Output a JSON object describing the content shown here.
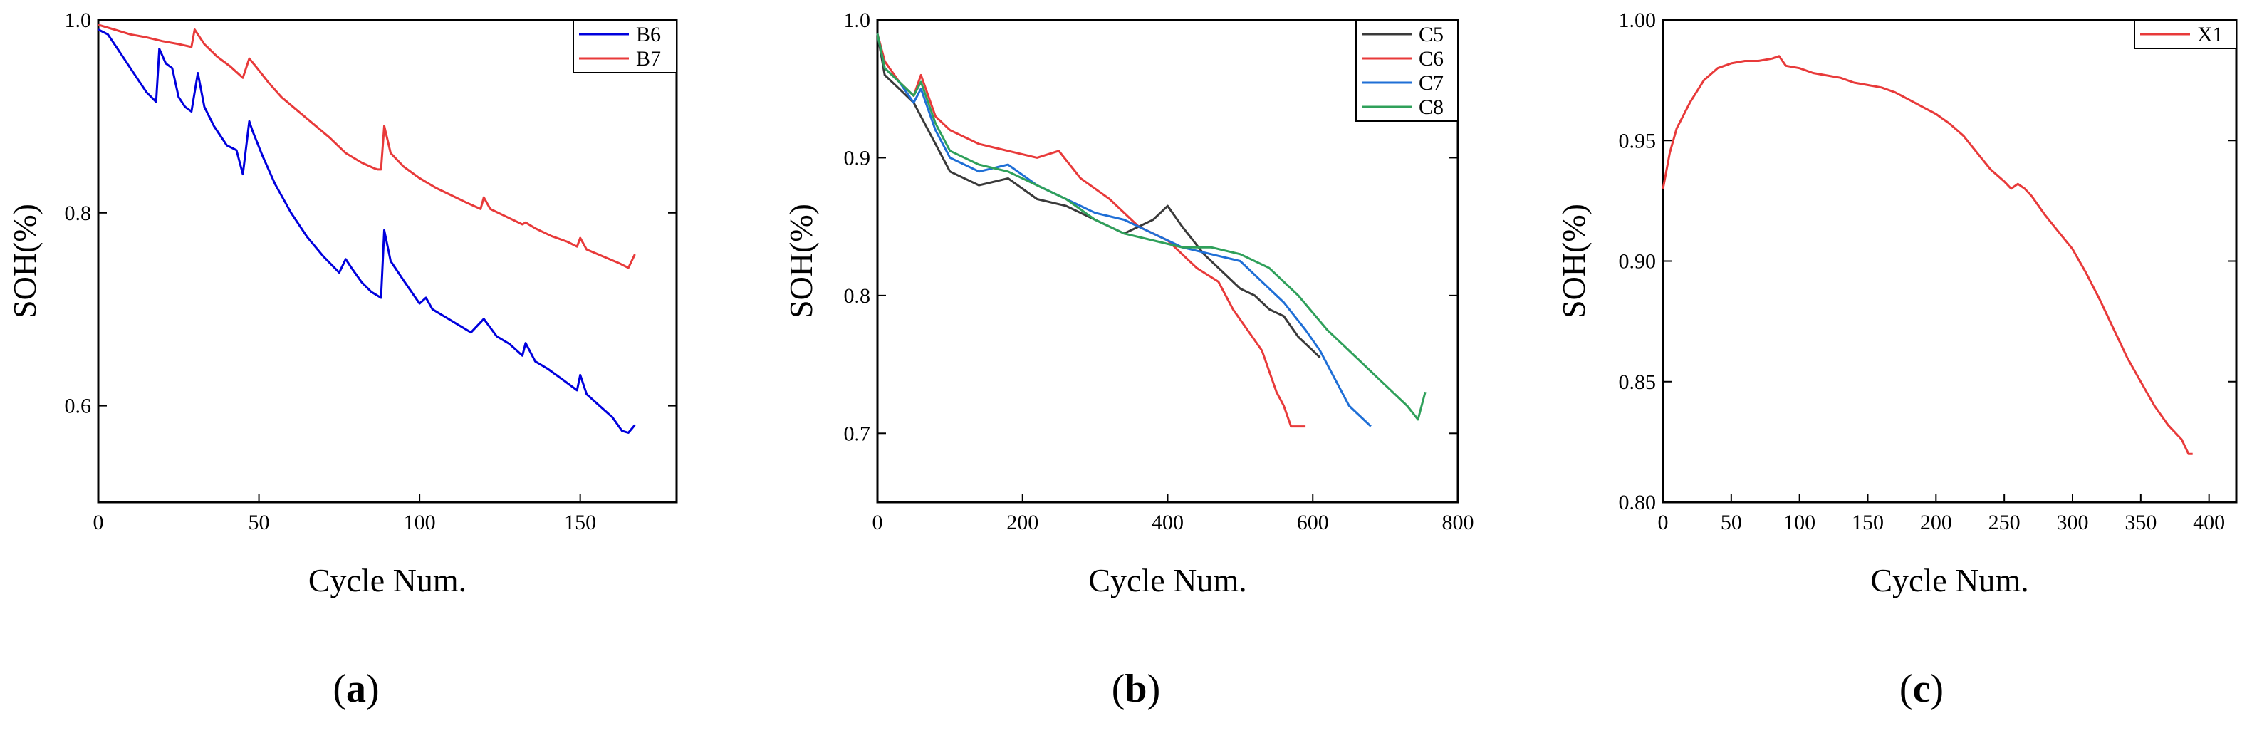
{
  "chart_data": [
    {
      "type": "line",
      "panel_label": "(a)",
      "panel_letter": "a",
      "xlabel": "Cycle Num.",
      "ylabel": "SOH(%)",
      "xlim": [
        0,
        180
      ],
      "ylim": [
        0.5,
        1.0
      ],
      "xticks": [
        0,
        50,
        100,
        150
      ],
      "yticks": [
        0.6,
        0.8,
        1.0
      ],
      "ytick_labels": [
        "0.6",
        "0.8",
        "1.0"
      ],
      "legend_position": "top-right",
      "series": [
        {
          "name": "B6",
          "color": "#0000dd",
          "x": [
            0,
            3,
            6,
            9,
            12,
            15,
            18,
            19,
            21,
            23,
            25,
            27,
            29,
            31,
            33,
            36,
            40,
            43,
            45,
            47,
            48,
            51,
            55,
            60,
            65,
            70,
            75,
            77,
            79,
            82,
            85,
            88,
            89,
            91,
            95,
            100,
            102,
            104,
            108,
            112,
            116,
            120,
            124,
            128,
            132,
            133,
            136,
            140,
            145,
            149,
            150,
            152,
            156,
            160,
            163,
            165,
            167
          ],
          "y": [
            0.99,
            0.985,
            0.97,
            0.955,
            0.94,
            0.925,
            0.915,
            0.97,
            0.955,
            0.95,
            0.92,
            0.91,
            0.905,
            0.945,
            0.91,
            0.89,
            0.87,
            0.865,
            0.84,
            0.895,
            0.885,
            0.86,
            0.83,
            0.8,
            0.775,
            0.755,
            0.738,
            0.752,
            0.742,
            0.728,
            0.718,
            0.712,
            0.782,
            0.75,
            0.73,
            0.706,
            0.712,
            0.7,
            0.692,
            0.684,
            0.676,
            0.69,
            0.672,
            0.664,
            0.652,
            0.665,
            0.646,
            0.638,
            0.626,
            0.616,
            0.632,
            0.612,
            0.6,
            0.588,
            0.574,
            0.572,
            0.58
          ]
        },
        {
          "name": "B7",
          "color": "#e83a3a",
          "x": [
            0,
            5,
            10,
            15,
            20,
            25,
            29,
            30,
            33,
            37,
            41,
            45,
            47,
            49,
            53,
            57,
            62,
            67,
            72,
            77,
            82,
            86,
            87,
            88,
            89,
            91,
            95,
            100,
            105,
            110,
            115,
            119,
            120,
            122,
            127,
            132,
            133,
            136,
            141,
            146,
            149,
            150,
            152,
            157,
            162,
            165,
            167
          ],
          "y": [
            0.995,
            0.99,
            0.985,
            0.982,
            0.978,
            0.975,
            0.972,
            0.99,
            0.975,
            0.962,
            0.952,
            0.94,
            0.96,
            0.952,
            0.935,
            0.92,
            0.906,
            0.892,
            0.878,
            0.862,
            0.852,
            0.846,
            0.845,
            0.845,
            0.89,
            0.862,
            0.848,
            0.836,
            0.826,
            0.818,
            0.81,
            0.804,
            0.816,
            0.804,
            0.796,
            0.788,
            0.79,
            0.784,
            0.776,
            0.77,
            0.765,
            0.774,
            0.762,
            0.755,
            0.748,
            0.743,
            0.757
          ]
        }
      ]
    },
    {
      "type": "line",
      "panel_label": "(b)",
      "panel_letter": "b",
      "xlabel": "Cycle Num.",
      "ylabel": "SOH(%)",
      "xlim": [
        0,
        800
      ],
      "ylim": [
        0.65,
        1.0
      ],
      "xticks": [
        0,
        200,
        400,
        600,
        800
      ],
      "yticks": [
        0.7,
        0.8,
        0.9,
        1.0
      ],
      "ytick_labels": [
        "0.7",
        "0.8",
        "0.9",
        "1.0"
      ],
      "legend_position": "top-right",
      "series": [
        {
          "name": "C5",
          "color": "#3a3a3a",
          "x": [
            0,
            10,
            30,
            50,
            60,
            80,
            100,
            140,
            180,
            220,
            260,
            300,
            340,
            380,
            400,
            420,
            450,
            480,
            500,
            520,
            540,
            560,
            580,
            600,
            610
          ],
          "y": [
            0.99,
            0.96,
            0.95,
            0.94,
            0.93,
            0.91,
            0.89,
            0.88,
            0.885,
            0.87,
            0.865,
            0.855,
            0.845,
            0.855,
            0.865,
            0.85,
            0.83,
            0.815,
            0.805,
            0.8,
            0.79,
            0.785,
            0.77,
            0.76,
            0.755
          ]
        },
        {
          "name": "C6",
          "color": "#e83a3a",
          "x": [
            0,
            10,
            30,
            50,
            60,
            80,
            100,
            140,
            180,
            220,
            250,
            280,
            320,
            360,
            400,
            440,
            470,
            490,
            510,
            530,
            540,
            550,
            560,
            570,
            590
          ],
          "y": [
            0.99,
            0.97,
            0.955,
            0.945,
            0.96,
            0.93,
            0.92,
            0.91,
            0.905,
            0.9,
            0.905,
            0.885,
            0.87,
            0.85,
            0.84,
            0.82,
            0.81,
            0.79,
            0.775,
            0.76,
            0.745,
            0.73,
            0.72,
            0.705,
            0.705
          ]
        },
        {
          "name": "C7",
          "color": "#1f6fd6",
          "x": [
            0,
            10,
            30,
            50,
            60,
            80,
            100,
            140,
            180,
            220,
            260,
            300,
            340,
            380,
            420,
            460,
            500,
            530,
            560,
            590,
            610,
            630,
            650,
            670,
            680
          ],
          "y": [
            0.99,
            0.965,
            0.955,
            0.94,
            0.95,
            0.92,
            0.9,
            0.89,
            0.895,
            0.88,
            0.87,
            0.86,
            0.855,
            0.845,
            0.835,
            0.83,
            0.825,
            0.81,
            0.795,
            0.775,
            0.76,
            0.74,
            0.72,
            0.71,
            0.705
          ]
        },
        {
          "name": "C8",
          "color": "#2fa05a",
          "x": [
            0,
            10,
            30,
            50,
            60,
            80,
            100,
            140,
            180,
            220,
            260,
            300,
            340,
            380,
            420,
            460,
            500,
            540,
            580,
            620,
            660,
            690,
            710,
            730,
            745,
            755
          ],
          "y": [
            0.99,
            0.965,
            0.955,
            0.945,
            0.955,
            0.925,
            0.905,
            0.895,
            0.89,
            0.88,
            0.87,
            0.855,
            0.845,
            0.84,
            0.835,
            0.835,
            0.83,
            0.82,
            0.8,
            0.775,
            0.755,
            0.74,
            0.73,
            0.72,
            0.71,
            0.73
          ]
        }
      ]
    },
    {
      "type": "line",
      "panel_label": "(c)",
      "panel_letter": "c",
      "xlabel": "Cycle Num.",
      "ylabel": "SOH(%)",
      "xlim": [
        0,
        420
      ],
      "ylim": [
        0.8,
        1.0
      ],
      "xticks": [
        0,
        50,
        100,
        150,
        200,
        250,
        300,
        350,
        400
      ],
      "yticks": [
        0.8,
        0.85,
        0.9,
        0.95,
        1.0
      ],
      "ytick_labels": [
        "0.80",
        "0.85",
        "0.90",
        "0.95",
        "1.00"
      ],
      "legend_position": "top-right",
      "series": [
        {
          "name": "X1",
          "color": "#e83a3a",
          "x": [
            0,
            5,
            10,
            20,
            30,
            40,
            50,
            60,
            70,
            80,
            85,
            90,
            100,
            110,
            120,
            130,
            140,
            150,
            160,
            170,
            180,
            190,
            200,
            210,
            220,
            230,
            240,
            250,
            255,
            260,
            265,
            270,
            280,
            290,
            300,
            310,
            320,
            330,
            340,
            350,
            360,
            370,
            380,
            385,
            388
          ],
          "y": [
            0.93,
            0.945,
            0.955,
            0.966,
            0.975,
            0.98,
            0.982,
            0.983,
            0.983,
            0.984,
            0.985,
            0.981,
            0.98,
            0.978,
            0.977,
            0.976,
            0.974,
            0.973,
            0.972,
            0.97,
            0.967,
            0.964,
            0.961,
            0.957,
            0.952,
            0.945,
            0.938,
            0.933,
            0.93,
            0.932,
            0.93,
            0.927,
            0.919,
            0.912,
            0.905,
            0.895,
            0.884,
            0.872,
            0.86,
            0.85,
            0.84,
            0.832,
            0.826,
            0.82,
            0.82
          ]
        }
      ]
    }
  ]
}
